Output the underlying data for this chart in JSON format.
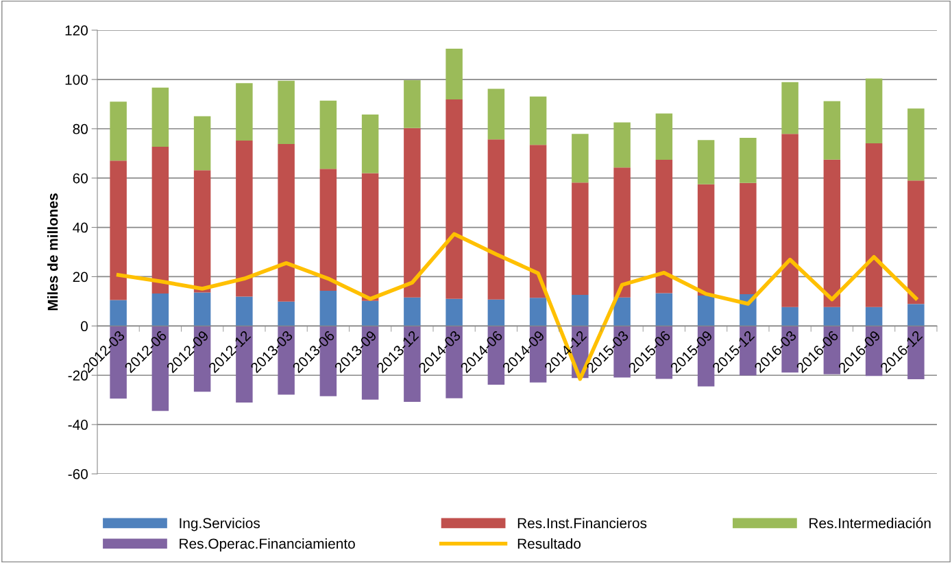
{
  "chart_data": {
    "type": "bar",
    "stacked": true,
    "ylabel": "Miles de millones",
    "categories": [
      "2012-03",
      "2012-06",
      "2012-09",
      "2012-12",
      "2013-03",
      "2013-06",
      "2013-09",
      "2013-12",
      "2014-03",
      "2014-06",
      "2014-09",
      "2014-12",
      "2015-03",
      "2015-06",
      "2015-09",
      "2015-12",
      "2016-03",
      "2016-06",
      "2016-09",
      "2016-12"
    ],
    "series": [
      {
        "name": "Ing.Servicios",
        "color": "#4f81bd",
        "values": [
          10.5,
          13.2,
          13.6,
          11.9,
          9.9,
          14.3,
          10.2,
          11.6,
          11.0,
          10.7,
          11.4,
          12.6,
          11.6,
          13.3,
          12.3,
          12.9,
          7.7,
          7.7,
          7.7,
          8.9
        ]
      },
      {
        "name": "Res.Inst.Financieros",
        "color": "#c0504d",
        "values": [
          56.6,
          59.5,
          49.6,
          63.3,
          63.9,
          49.4,
          51.8,
          68.7,
          80.9,
          65.0,
          62.1,
          45.6,
          52.7,
          54.1,
          45.2,
          45.1,
          70.2,
          59.8,
          66.4,
          50.1
        ]
      },
      {
        "name": "Res.Intermediación",
        "color": "#9bbb59",
        "values": [
          23.9,
          24.0,
          21.9,
          23.3,
          25.7,
          27.7,
          23.8,
          19.4,
          20.6,
          20.5,
          19.6,
          19.7,
          18.3,
          18.8,
          17.9,
          18.3,
          21.0,
          23.7,
          26.3,
          29.2
        ]
      },
      {
        "name": "Res.Operac.Financiamiento",
        "color": "#8064a2",
        "values": [
          -29.5,
          -34.5,
          -26.7,
          -31.1,
          -27.9,
          -28.5,
          -29.9,
          -30.8,
          -29.3,
          -23.8,
          -22.9,
          -21.1,
          -20.9,
          -21.5,
          -24.5,
          -20.1,
          -18.9,
          -19.6,
          -20.3,
          -21.6
        ]
      },
      {
        "name": "Resultado",
        "type": "line",
        "color": "#ffc000",
        "values": [
          20.7,
          18.1,
          15.1,
          19.2,
          25.5,
          19.2,
          11.0,
          17.6,
          37.3,
          29.1,
          21.4,
          -21.5,
          16.7,
          21.6,
          13.0,
          9.0,
          26.9,
          10.8,
          28.0,
          11.2
        ]
      }
    ],
    "ylim": [
      -60,
      120
    ],
    "yticks": [
      -60,
      -40,
      -20,
      0,
      20,
      40,
      60,
      80,
      100,
      120
    ],
    "grid": "y",
    "legend": "bottom",
    "marker": "none",
    "line_style": "solid"
  }
}
